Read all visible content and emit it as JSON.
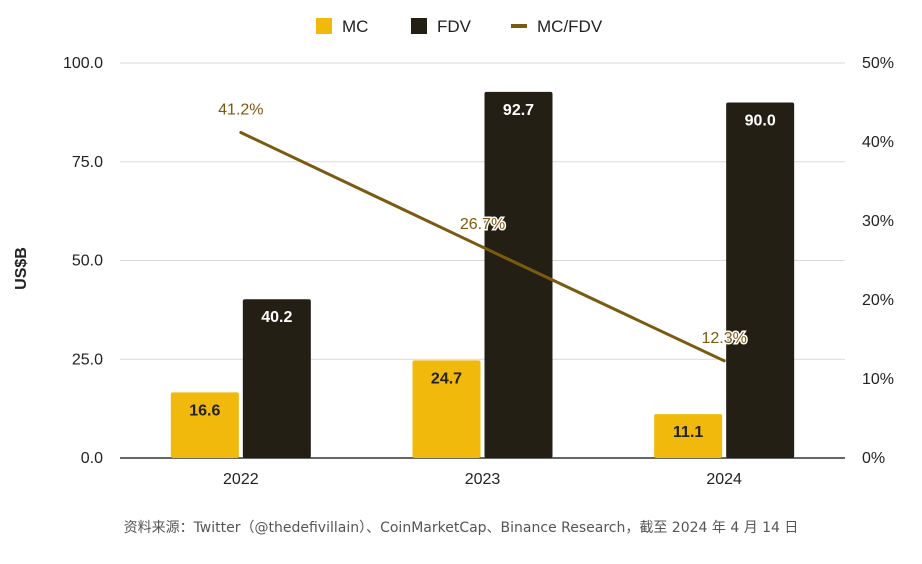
{
  "chart_data": {
    "type": "bar",
    "categories": [
      "2022",
      "2023",
      "2024"
    ],
    "series": [
      {
        "name": "MC",
        "type": "bar",
        "axis": "left",
        "color": "#f0b90b",
        "values": [
          16.6,
          24.7,
          11.1
        ],
        "labels": [
          "16.6",
          "24.7",
          "11.1"
        ]
      },
      {
        "name": "FDV",
        "type": "bar",
        "axis": "left",
        "color": "#231f14",
        "values": [
          40.2,
          92.7,
          90.0
        ],
        "labels": [
          "40.2",
          "92.7",
          "90.0"
        ]
      },
      {
        "name": "MC/FDV",
        "type": "line",
        "axis": "right",
        "color": "#7a5a10",
        "values": [
          41.2,
          26.7,
          12.3
        ],
        "labels": [
          "41.2%",
          "26.7%",
          "12.3%"
        ]
      }
    ],
    "ylabel": "US$B",
    "ylim": [
      0,
      100
    ],
    "yticks": [
      "0.0",
      "25.0",
      "50.0",
      "75.0",
      "100.0"
    ],
    "y2lim": [
      0,
      50
    ],
    "y2ticks": [
      "0%",
      "10%",
      "20%",
      "30%",
      "40%",
      "50%"
    ],
    "grid": true,
    "legend": "top-center"
  },
  "source_note": "资料来源：Twitter（@thedefivillain）、CoinMarketCap、Binance Research，截至 2024 年 4 月 14 日"
}
